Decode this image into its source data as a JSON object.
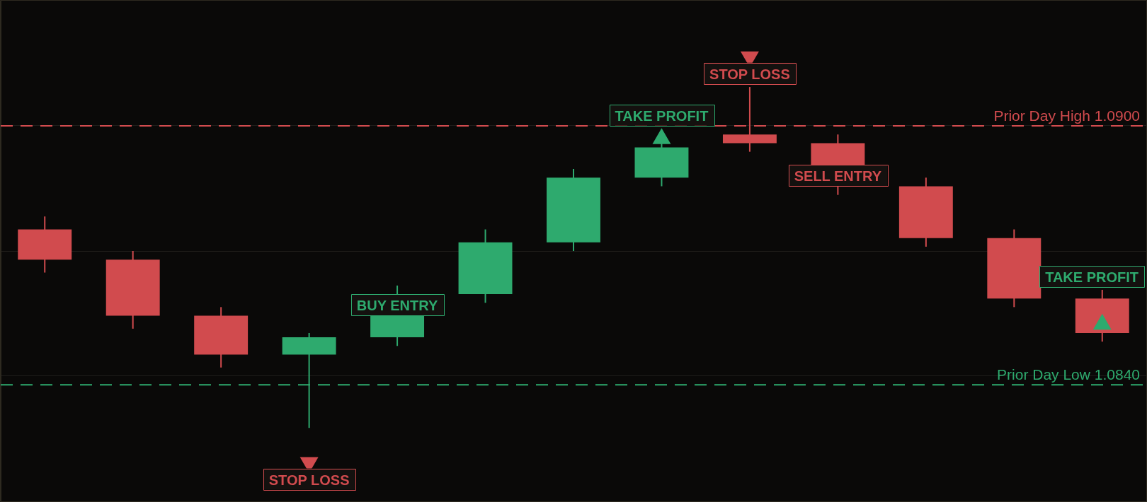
{
  "chart_data": {
    "type": "candlestick",
    "categories": [
      null,
      null,
      null,
      null,
      null,
      null,
      null,
      null,
      null,
      null,
      null,
      null,
      null
    ],
    "series": [
      {
        "ohlc": [
          [
            1.0876,
            1.0879,
            1.0866,
            1.0869
          ],
          [
            1.0869,
            1.0871,
            1.0853,
            1.0856
          ],
          [
            1.0856,
            1.0858,
            1.0844,
            1.0847
          ],
          [
            1.0847,
            1.0852,
            1.083,
            1.0851
          ],
          [
            1.0851,
            1.0863,
            1.0849,
            1.0861
          ],
          [
            1.0861,
            1.0876,
            1.0859,
            1.0873
          ],
          [
            1.0873,
            1.089,
            1.0871,
            1.0888
          ],
          [
            1.0888,
            1.0896,
            1.0886,
            1.0895
          ],
          [
            1.0898,
            1.0909,
            1.0894,
            1.0896
          ],
          [
            1.0896,
            1.0898,
            1.0884,
            1.0886
          ],
          [
            1.0886,
            1.0888,
            1.0872,
            1.0874
          ],
          [
            1.0874,
            1.0876,
            1.0858,
            1.086
          ],
          [
            1.086,
            1.0862,
            1.085,
            1.0852
          ]
        ],
        "colors": [
          "#d14b4e",
          "#d14b4e",
          "#d14b4e",
          "#2eaa6e",
          "#2eaa6e",
          "#2eaa6e",
          "#2eaa6e",
          "#2eaa6e",
          "#d14b4e",
          "#d14b4e",
          "#d14b4e",
          "#d14b4e",
          "#d14b4e"
        ],
        "value_labels": [
          null,
          null,
          null,
          null,
          "BUY ENTRY",
          null,
          null,
          null,
          null,
          "SELL ENTRY",
          null,
          null,
          null
        ]
      },
      {
        "type": "scatter",
        "marker": "triangle",
        "color": "#d14b4e",
        "values": [
          null,
          null,
          null,
          1.0822,
          null,
          null,
          null,
          null,
          1.0916,
          null,
          null,
          null,
          null
        ],
        "value_labels": [
          null,
          null,
          null,
          "STOP LOSS",
          null,
          null,
          null,
          null,
          "STOP LOSS",
          null,
          null,
          null,
          null
        ]
      },
      {
        "type": "scatter",
        "marker": "triangle",
        "color": "#2eaa6e",
        "values": [
          null,
          null,
          null,
          null,
          null,
          null,
          null,
          1.0897,
          null,
          null,
          null,
          null,
          1.0854
        ],
        "value_labels": [
          null,
          null,
          null,
          null,
          null,
          null,
          null,
          "TAKE PROFIT",
          null,
          null,
          null,
          null,
          "TAKE PROFIT"
        ]
      }
    ],
    "ylim": [
      1.0813,
      1.0929
    ],
    "yticks": [
      {
        "value": 1.09,
        "label": null
      },
      {
        "value": 1.0871,
        "label": null
      },
      {
        "value": 1.0842,
        "label": null
      }
    ],
    "grid": "y",
    "tick_labels": false,
    "ref_lines": [
      {
        "axis": "y",
        "value": 1.09,
        "label": "Prior Day High 1.0900",
        "color": "#d14b4e",
        "line_style": "dashed"
      },
      {
        "axis": "y",
        "value": 1.084,
        "label": "Prior Day Low 1.0840",
        "color": "#2eaa6e",
        "line_style": "dashed"
      }
    ]
  }
}
